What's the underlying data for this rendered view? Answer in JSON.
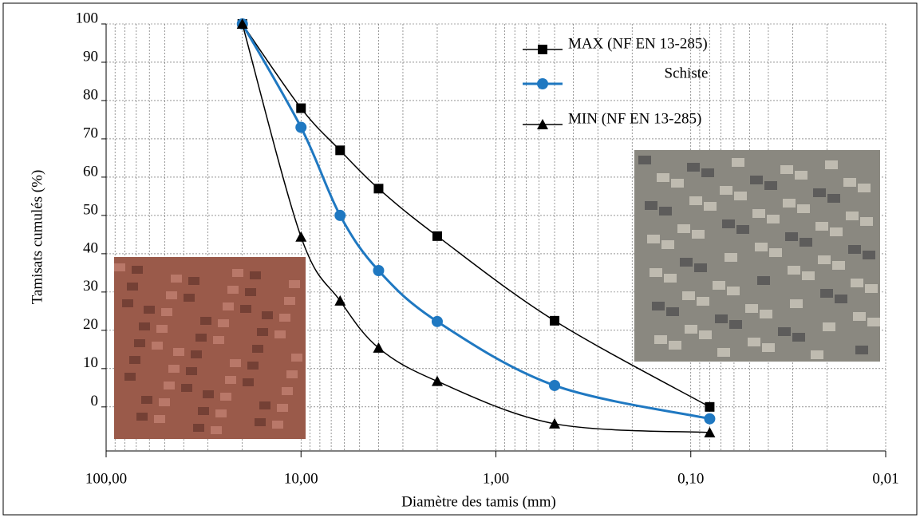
{
  "chart_data": {
    "type": "line",
    "x_label": "Diamètre des tamis (mm)",
    "y_label": "Tamisats cumulés (%)",
    "x": [
      20,
      10,
      6.3,
      4,
      2,
      0.5,
      0.08
    ],
    "xlim": [
      100,
      0.01
    ],
    "x_log": true,
    "x_reversed": true,
    "xticks": [
      {
        "value": 100,
        "label": "100,00"
      },
      {
        "value": 10,
        "label": "10,00"
      },
      {
        "value": 1,
        "label": "1,00"
      },
      {
        "value": 0.1,
        "label": "0,10"
      },
      {
        "value": 0.01,
        "label": "0,01"
      }
    ],
    "ylim": [
      -11.5,
      100
    ],
    "yticks": [
      0,
      10,
      20,
      30,
      40,
      50,
      60,
      70,
      80,
      90,
      100
    ],
    "grid": true,
    "legend": "top-right",
    "series": [
      {
        "name": "MAX (NF EN 13-285)",
        "color": "#000000",
        "marker": "square",
        "values": [
          100,
          78,
          67,
          57,
          44.6,
          22.5,
          0
        ]
      },
      {
        "name": "Schiste",
        "color": "#1f78c1",
        "marker": "circle",
        "values": [
          100,
          73,
          50,
          35.6,
          22.3,
          5.6,
          -3.1
        ]
      },
      {
        "name": "MIN (NF EN 13-285)",
        "color": "#000000",
        "marker": "triangle",
        "values": [
          100,
          44.4,
          27.7,
          15.4,
          6.7,
          -4.4,
          -6.7
        ]
      }
    ]
  }
}
